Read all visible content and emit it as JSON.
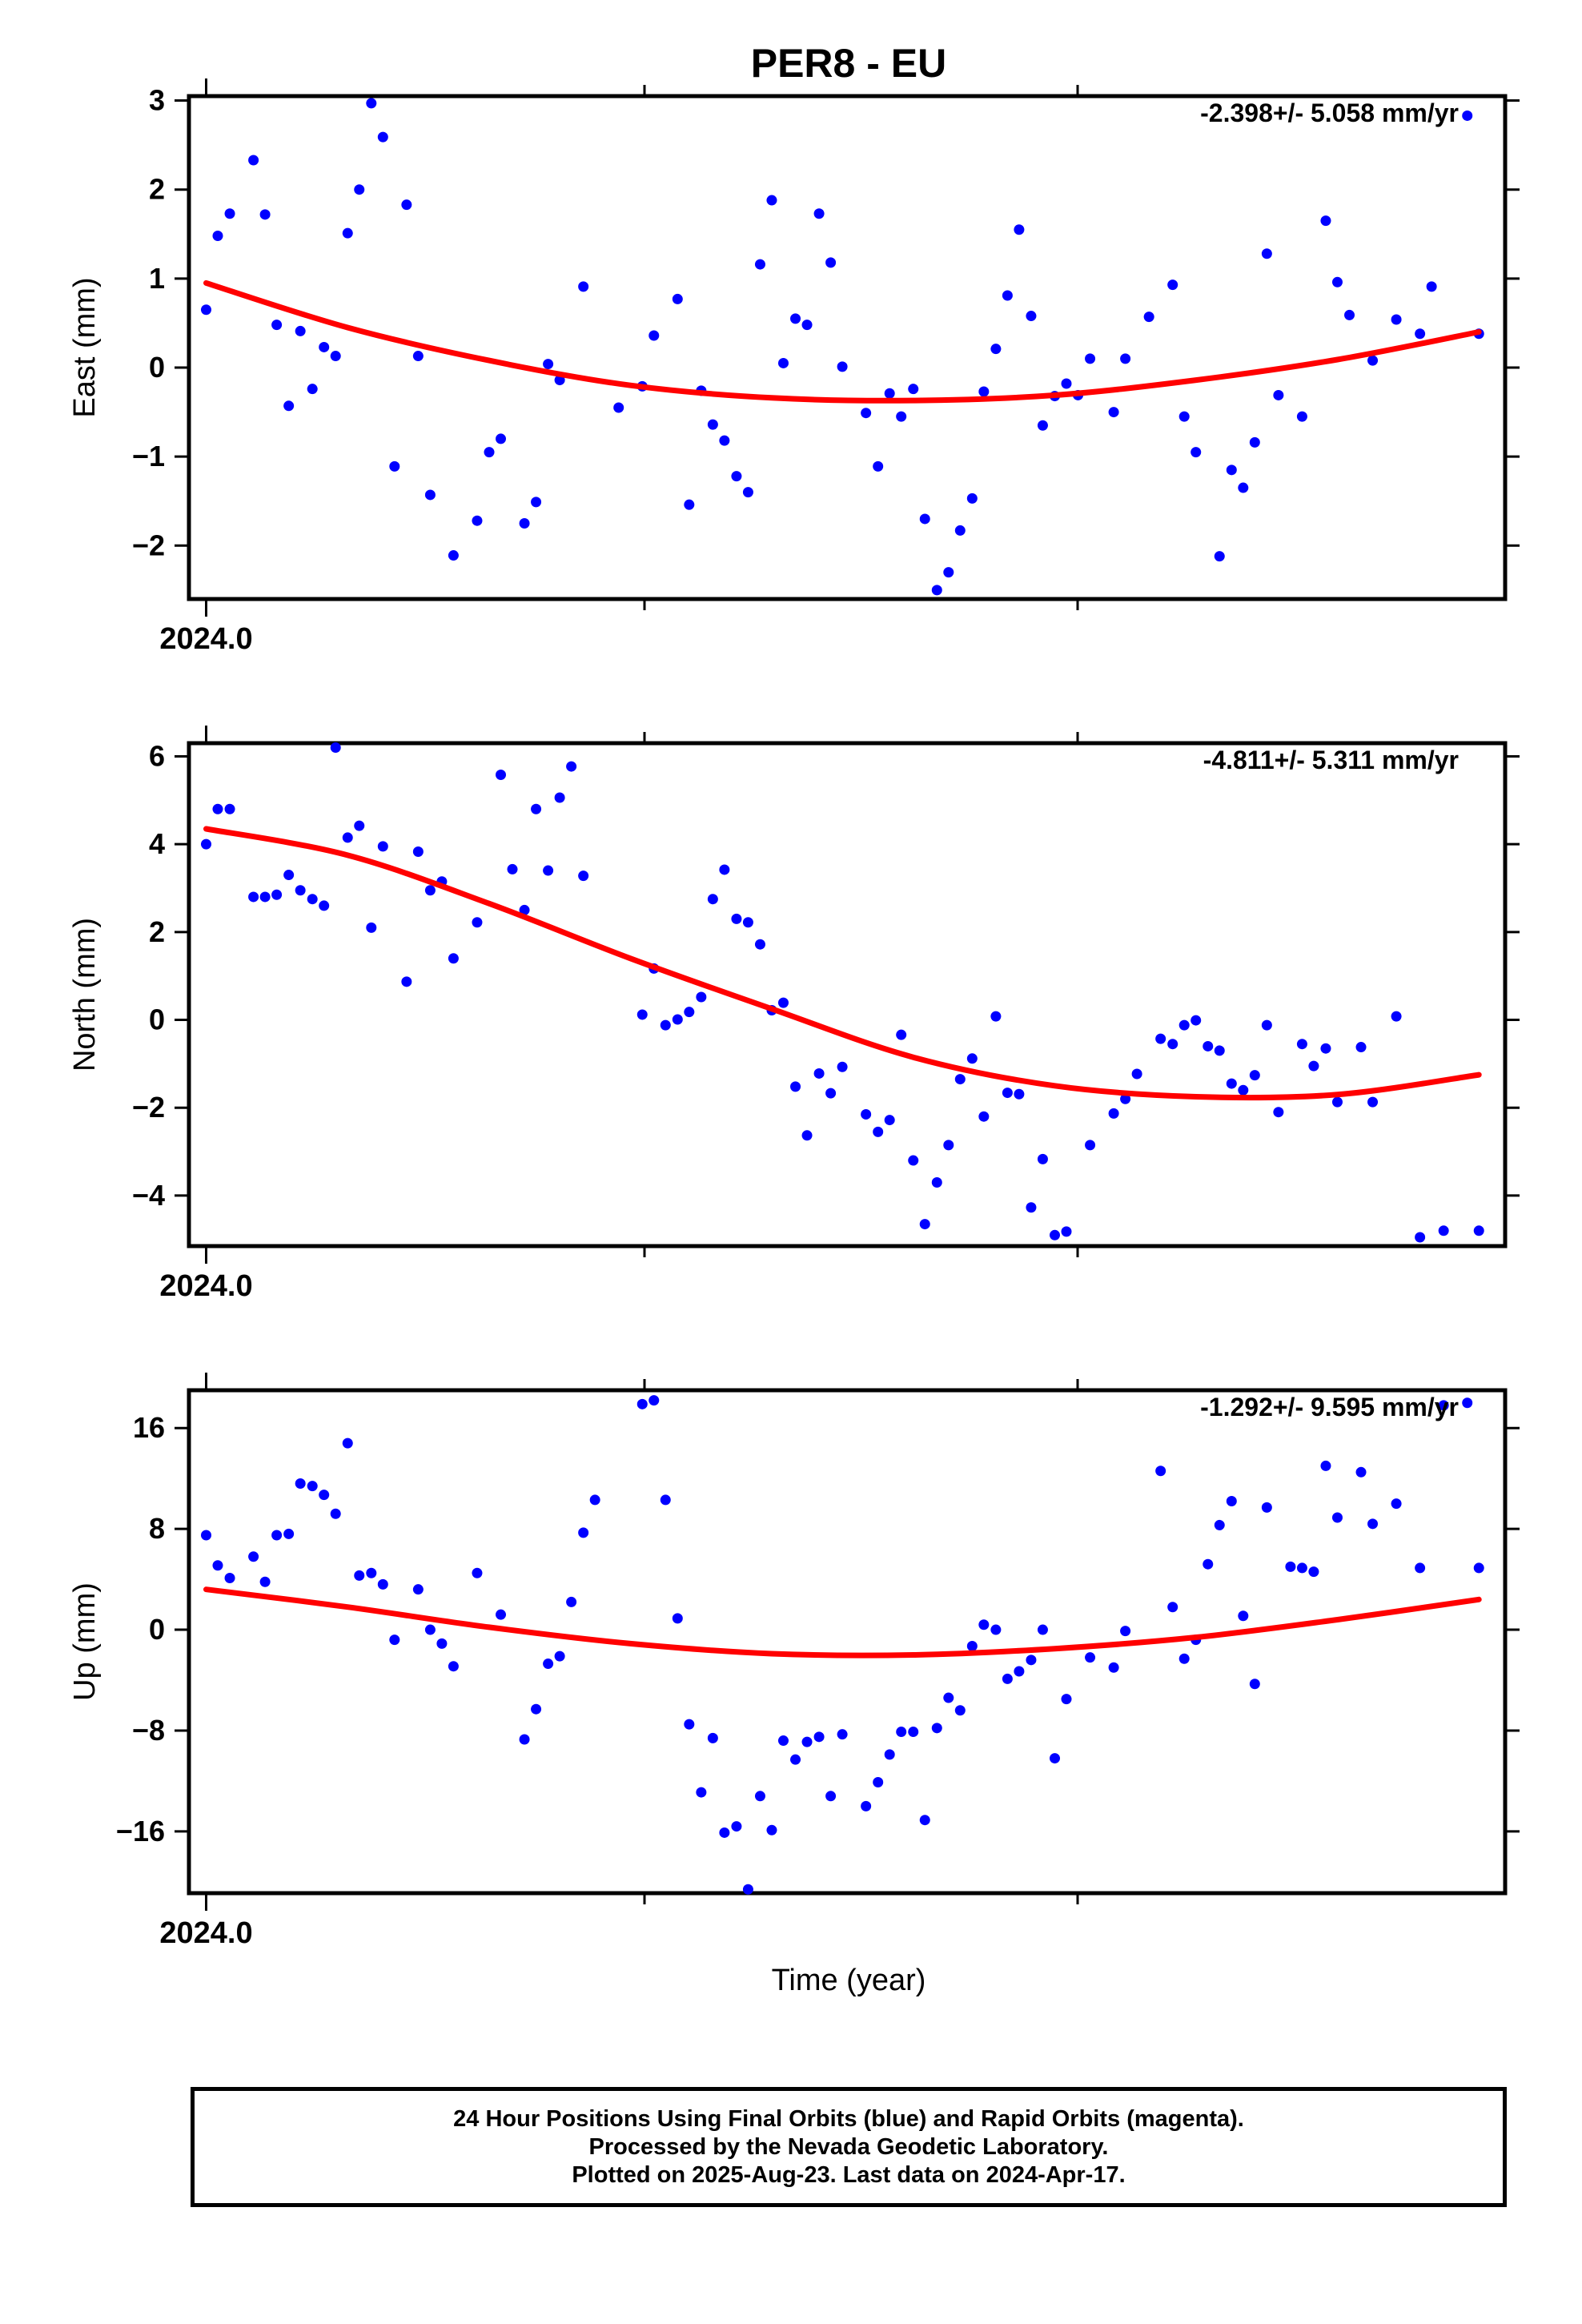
{
  "title": "PER8 - EU",
  "xlabel": "Time (year)",
  "caption": [
    "24 Hour Positions Using Final Orbits (blue) and Rapid Orbits (magenta).",
    "Processed by the Nevada Geodetic Laboratory.",
    "Plotted on 2025-Aug-23. Last data on 2024-Apr-17."
  ],
  "colors": {
    "points": "#0000ff",
    "fit": "#ff0000",
    "axes": "#000000"
  },
  "chart_data": [
    {
      "type": "scatter",
      "ylabel": "East (mm)",
      "rate_label": "-2.398+/- 5.058 mm/yr",
      "x_tick_label": "2024.0",
      "xlim": [
        2023.996,
        2024.302
      ],
      "ylim": [
        -2.6,
        3.05
      ],
      "yticks": [
        {
          "v": 3,
          "label": "3"
        },
        {
          "v": 2,
          "label": "2"
        },
        {
          "v": 1,
          "label": "1"
        },
        {
          "v": 0,
          "label": "0"
        },
        {
          "v": -1,
          "label": "−1"
        },
        {
          "v": -2,
          "label": "−2"
        }
      ],
      "x": [
        2024.0,
        2024.0027,
        2024.0055,
        2024.011,
        2024.0137,
        2024.0164,
        2024.0192,
        2024.0219,
        2024.0247,
        2024.0274,
        2024.0301,
        2024.0329,
        2024.0356,
        2024.0384,
        2024.0411,
        2024.0438,
        2024.0466,
        2024.0493,
        2024.0521,
        2024.0575,
        2024.063,
        2024.0658,
        2024.0685,
        2024.074,
        2024.0767,
        2024.0795,
        2024.0822,
        2024.0877,
        2024.0959,
        2024.1014,
        2024.1041,
        2024.1096,
        2024.1123,
        2024.1151,
        2024.1178,
        2024.1205,
        2024.1233,
        2024.126,
        2024.1288,
        2024.1315,
        2024.1342,
        2024.137,
        2024.1397,
        2024.1425,
        2024.1452,
        2024.1479,
        2024.1534,
        2024.1562,
        2024.1589,
        2024.1616,
        2024.1644,
        2024.1671,
        2024.1699,
        2024.1726,
        2024.1753,
        2024.1781,
        2024.1808,
        2024.1836,
        2024.1863,
        2024.189,
        2024.1918,
        2024.1945,
        2024.1973,
        2024.2,
        2024.2027,
        2024.2055,
        2024.211,
        2024.2137,
        2024.2192,
        2024.2247,
        2024.2274,
        2024.2301,
        2024.2356,
        2024.2384,
        2024.2411,
        2024.2438,
        2024.2466,
        2024.2493,
        2024.2548,
        2024.2603,
        2024.263,
        2024.2658,
        2024.2712,
        2024.2767,
        2024.2822,
        2024.2849,
        2024.2932,
        2024.2959
      ],
      "y": [
        0.65,
        1.48,
        1.73,
        2.33,
        1.72,
        0.48,
        -0.43,
        0.41,
        -0.24,
        0.23,
        0.13,
        1.51,
        2.0,
        2.97,
        2.59,
        -1.11,
        1.83,
        0.13,
        -1.43,
        -2.11,
        -1.72,
        -0.95,
        -0.8,
        -1.75,
        -1.51,
        0.04,
        -0.14,
        0.91,
        -0.45,
        -0.21,
        0.36,
        0.77,
        -1.54,
        -0.26,
        -0.64,
        -0.82,
        -1.22,
        -1.4,
        1.16,
        1.88,
        0.05,
        0.55,
        0.48,
        1.73,
        1.18,
        0.01,
        -0.51,
        -1.11,
        -0.29,
        -0.55,
        -0.24,
        -1.7,
        -2.5,
        -2.3,
        -1.83,
        -1.47,
        -0.27,
        0.21,
        0.81,
        1.55,
        0.58,
        -0.65,
        -0.32,
        -0.18,
        -0.31,
        0.1,
        -0.5,
        0.1,
        0.57,
        0.93,
        -0.55,
        -0.95,
        -2.12,
        -1.15,
        -1.35,
        -0.84,
        1.28,
        -0.31,
        -0.55,
        1.65,
        0.96,
        0.59,
        0.08,
        0.54,
        0.38,
        0.91,
        2.83,
        0.38
      ],
      "fit": [
        0.95,
        0.45,
        0.08,
        -0.2,
        -0.34,
        -0.37,
        -0.31,
        -0.14,
        0.09,
        0.4
      ]
    },
    {
      "type": "scatter",
      "ylabel": "North (mm)",
      "rate_label": "-4.811+/- 5.311 mm/yr",
      "x_tick_label": "2024.0",
      "xlim": [
        2023.996,
        2024.302
      ],
      "ylim": [
        -5.15,
        6.3
      ],
      "yticks": [
        {
          "v": 6,
          "label": "6"
        },
        {
          "v": 4,
          "label": "4"
        },
        {
          "v": 2,
          "label": "2"
        },
        {
          "v": 0,
          "label": "0"
        },
        {
          "v": -2,
          "label": "−2"
        },
        {
          "v": -4,
          "label": "−4"
        }
      ],
      "x": [
        2024.0,
        2024.0027,
        2024.0055,
        2024.011,
        2024.0137,
        2024.0164,
        2024.0192,
        2024.0219,
        2024.0247,
        2024.0274,
        2024.0301,
        2024.0329,
        2024.0356,
        2024.0384,
        2024.0411,
        2024.0466,
        2024.0493,
        2024.0521,
        2024.0548,
        2024.0575,
        2024.063,
        2024.0685,
        2024.0712,
        2024.074,
        2024.0767,
        2024.0795,
        2024.0822,
        2024.0849,
        2024.0877,
        2024.1014,
        2024.1041,
        2024.1068,
        2024.1096,
        2024.1123,
        2024.1151,
        2024.1178,
        2024.1205,
        2024.1233,
        2024.126,
        2024.1288,
        2024.1315,
        2024.1342,
        2024.137,
        2024.1397,
        2024.1425,
        2024.1452,
        2024.1479,
        2024.1534,
        2024.1562,
        2024.1589,
        2024.1616,
        2024.1644,
        2024.1671,
        2024.1699,
        2024.1726,
        2024.1753,
        2024.1781,
        2024.1808,
        2024.1836,
        2024.1863,
        2024.189,
        2024.1918,
        2024.1945,
        2024.1973,
        2024.2,
        2024.2055,
        2024.211,
        2024.2137,
        2024.2164,
        2024.2219,
        2024.2247,
        2024.2274,
        2024.2301,
        2024.2329,
        2024.2356,
        2024.2384,
        2024.2411,
        2024.2438,
        2024.2466,
        2024.2493,
        2024.2548,
        2024.2575,
        2024.2603,
        2024.263,
        2024.2685,
        2024.2712,
        2024.2767,
        2024.2822,
        2024.2877,
        2024.2959
      ],
      "y": [
        4.0,
        4.8,
        4.8,
        2.8,
        2.8,
        2.85,
        3.3,
        2.95,
        2.75,
        2.6,
        6.2,
        4.15,
        4.42,
        2.1,
        3.95,
        0.87,
        3.83,
        2.95,
        3.15,
        1.4,
        2.22,
        5.58,
        3.43,
        2.5,
        4.8,
        3.4,
        5.06,
        5.77,
        3.28,
        0.12,
        1.17,
        -0.12,
        0.01,
        0.18,
        0.52,
        2.75,
        3.42,
        2.3,
        2.22,
        1.72,
        0.22,
        0.39,
        -1.52,
        -2.63,
        -1.22,
        -1.67,
        -1.07,
        -2.15,
        -2.55,
        -2.28,
        -0.34,
        -3.2,
        -4.65,
        -3.7,
        -2.85,
        -1.35,
        -0.88,
        -2.2,
        0.08,
        -1.66,
        -1.69,
        -4.27,
        -3.17,
        -4.9,
        -4.82,
        -2.85,
        -2.13,
        -1.8,
        -1.23,
        -0.43,
        -0.55,
        -0.12,
        -0.01,
        -0.6,
        -0.7,
        -1.45,
        -1.6,
        -1.26,
        -0.12,
        -2.1,
        -0.55,
        -1.05,
        -0.65,
        -1.87,
        -0.62,
        -1.87,
        0.08,
        -4.95,
        -4.8,
        -4.8
      ],
      "fit": [
        4.35,
        3.75,
        2.65,
        1.4,
        0.25,
        -0.85,
        -1.5,
        -1.75,
        -1.7,
        -1.25
      ]
    },
    {
      "type": "scatter",
      "ylabel": "Up (mm)",
      "rate_label": "-1.292+/- 9.595 mm/yr",
      "x_tick_label": "2024.0",
      "xlim": [
        2023.996,
        2024.302
      ],
      "ylim": [
        -20.9,
        19.0
      ],
      "yticks": [
        {
          "v": 16,
          "label": "16"
        },
        {
          "v": 8,
          "label": "8"
        },
        {
          "v": 0,
          "label": "0"
        },
        {
          "v": -8,
          "label": "−8"
        },
        {
          "v": -16,
          "label": "−16"
        }
      ],
      "x": [
        2024.0,
        2024.0027,
        2024.0055,
        2024.011,
        2024.0137,
        2024.0164,
        2024.0192,
        2024.0219,
        2024.0247,
        2024.0274,
        2024.0301,
        2024.0329,
        2024.0356,
        2024.0384,
        2024.0411,
        2024.0438,
        2024.0493,
        2024.0521,
        2024.0548,
        2024.0575,
        2024.063,
        2024.0685,
        2024.074,
        2024.0767,
        2024.0795,
        2024.0822,
        2024.0849,
        2024.0877,
        2024.0904,
        2024.1014,
        2024.1041,
        2024.1068,
        2024.1096,
        2024.1123,
        2024.1151,
        2024.1178,
        2024.1205,
        2024.1233,
        2024.126,
        2024.1288,
        2024.1315,
        2024.1342,
        2024.137,
        2024.1397,
        2024.1425,
        2024.1452,
        2024.1479,
        2024.1534,
        2024.1562,
        2024.1589,
        2024.1616,
        2024.1644,
        2024.1671,
        2024.1699,
        2024.1726,
        2024.1753,
        2024.1781,
        2024.1808,
        2024.1836,
        2024.1863,
        2024.189,
        2024.1918,
        2024.1945,
        2024.1973,
        2024.2,
        2024.2055,
        2024.211,
        2024.2137,
        2024.2219,
        2024.2247,
        2024.2274,
        2024.2301,
        2024.2329,
        2024.2356,
        2024.2384,
        2024.2411,
        2024.2438,
        2024.2466,
        2024.2521,
        2024.2548,
        2024.2575,
        2024.2603,
        2024.263,
        2024.2685,
        2024.2712,
        2024.2767,
        2024.2822,
        2024.2877,
        2024.2932,
        2024.2959
      ],
      "y": [
        7.5,
        5.1,
        4.1,
        5.8,
        3.8,
        7.5,
        7.6,
        11.6,
        11.4,
        10.7,
        9.2,
        14.8,
        4.3,
        4.5,
        3.6,
        -0.8,
        3.2,
        0.0,
        -1.1,
        -2.9,
        4.5,
        1.2,
        -8.7,
        -6.3,
        -2.7,
        -2.1,
        2.2,
        7.7,
        10.3,
        17.9,
        18.2,
        10.3,
        0.9,
        -7.5,
        -12.9,
        -8.6,
        -16.1,
        -15.6,
        -20.6,
        -13.2,
        -15.9,
        -8.8,
        -10.3,
        -8.9,
        -8.5,
        -13.2,
        -8.3,
        -14.0,
        -12.1,
        -9.9,
        -8.1,
        -8.1,
        -15.1,
        -7.8,
        -5.4,
        -6.4,
        -1.3,
        0.4,
        0.0,
        -3.9,
        -3.3,
        -2.4,
        0.0,
        -10.2,
        -5.5,
        -2.2,
        -3.0,
        -0.1,
        12.6,
        1.8,
        -2.3,
        -0.8,
        5.2,
        8.3,
        10.2,
        1.1,
        -4.3,
        9.7,
        5.0,
        4.9,
        4.6,
        13.0,
        8.9,
        12.5,
        8.4,
        10.0,
        4.9,
        17.8,
        18.0,
        4.9
      ],
      "fit": [
        3.2,
        1.8,
        0.2,
        -1.1,
        -1.9,
        -2.0,
        -1.5,
        -0.6,
        0.8,
        2.4
      ]
    }
  ]
}
